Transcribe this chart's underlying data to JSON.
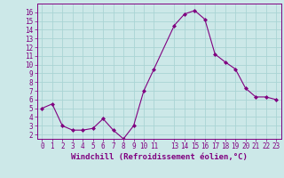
{
  "x": [
    0,
    1,
    2,
    3,
    4,
    5,
    6,
    7,
    8,
    9,
    10,
    11,
    13,
    14,
    15,
    16,
    17,
    18,
    19,
    20,
    21,
    22,
    23
  ],
  "y": [
    5.0,
    5.5,
    3.0,
    2.5,
    2.5,
    2.7,
    3.8,
    2.5,
    1.5,
    3.0,
    7.0,
    9.5,
    14.5,
    15.8,
    16.2,
    15.2,
    11.2,
    10.3,
    9.5,
    7.3,
    6.3,
    6.3,
    6.0
  ],
  "line_color": "#800080",
  "marker": "D",
  "marker_size": 2,
  "bg_color": "#cce8e8",
  "grid_color": "#aad4d4",
  "xlabel": "Windchill (Refroidissement éolien,°C)",
  "xlim": [
    -0.5,
    23.5
  ],
  "ylim": [
    1.5,
    17.0
  ],
  "yticks": [
    2,
    3,
    4,
    5,
    6,
    7,
    8,
    9,
    10,
    11,
    12,
    13,
    14,
    15,
    16
  ],
  "xticks": [
    0,
    1,
    2,
    3,
    4,
    5,
    6,
    7,
    8,
    9,
    10,
    11,
    13,
    14,
    15,
    16,
    17,
    18,
    19,
    20,
    21,
    22,
    23
  ],
  "tick_color": "#800080",
  "label_color": "#800080",
  "tick_fontsize": 5.5,
  "xlabel_fontsize": 6.5
}
